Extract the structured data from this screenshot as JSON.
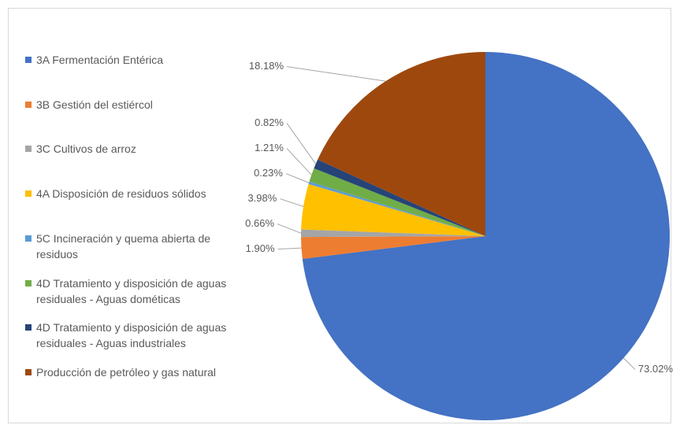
{
  "chart_data": {
    "type": "pie",
    "categories": [
      "3A Fermentación Entérica",
      "3B Gestión del estiércol",
      "3C Cultivos de arroz",
      "4A Disposición de residuos sólidos",
      "5C Incineración y quema abierta de residuos",
      "4D Tratamiento y disposición de aguas residuales - Aguas dométicas",
      "4D Tratamiento y disposición de aguas residuales - Aguas industriales",
      "Producción de petróleo y gas natural"
    ],
    "values": [
      73.02,
      1.9,
      0.66,
      3.98,
      0.23,
      1.21,
      0.82,
      18.18
    ],
    "value_labels": [
      "73.02%",
      "1.90%",
      "0.66%",
      "3.98%",
      "0.23%",
      "1.21%",
      "0.82%",
      "18.18%"
    ],
    "colors": [
      "#4472c4",
      "#ed7d31",
      "#a5a5a5",
      "#ffc000",
      "#5b9bd5",
      "#70ad47",
      "#264478",
      "#9e480e"
    ],
    "legend": "left"
  }
}
